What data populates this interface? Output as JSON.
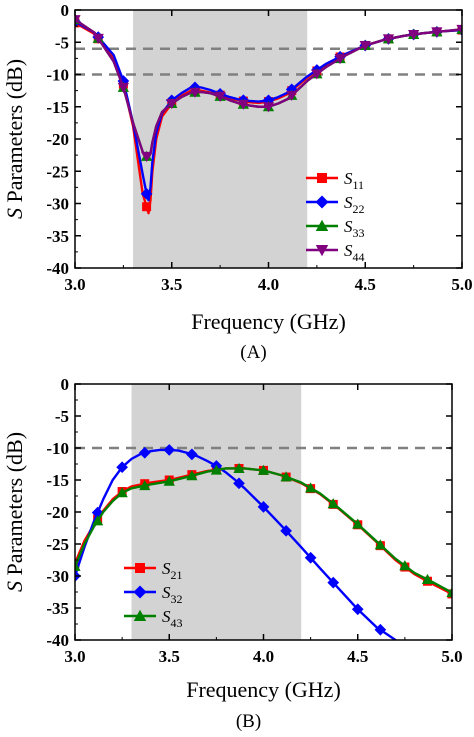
{
  "chart_data": [
    {
      "type": "line",
      "panel_label": "(A)",
      "xlabel": "Frequency (GHz)",
      "ylabel_italic": "S",
      "ylabel_rest": " Parameters (dB)",
      "xlim": [
        3.0,
        5.0
      ],
      "ylim": [
        -40,
        0
      ],
      "xticks": [
        "3.0",
        "3.5",
        "4.0",
        "4.5",
        "5.0"
      ],
      "yticks": [
        "0",
        "-5",
        "-10",
        "-15",
        "-20",
        "-25",
        "-30",
        "-35",
        "-40"
      ],
      "shaded_band": [
        3.3,
        4.2
      ],
      "reference_lines": [
        -6,
        -10
      ],
      "legend_position": "lower-right",
      "series": [
        {
          "name": "S",
          "sub": "11",
          "color": "#ff0000",
          "marker": "square",
          "x": [
            3.0,
            3.1,
            3.2,
            3.25,
            3.3,
            3.35,
            3.37,
            3.38,
            3.39,
            3.4,
            3.42,
            3.45,
            3.5,
            3.55,
            3.6,
            3.65,
            3.7,
            3.75,
            3.8,
            3.85,
            3.9,
            3.95,
            4.0,
            4.05,
            4.1,
            4.2,
            4.3,
            4.4,
            4.5,
            4.6,
            4.7,
            4.8,
            4.9,
            5.0
          ],
          "y": [
            -2.0,
            -3.7,
            -7.5,
            -11.5,
            -18.0,
            -28.5,
            -30.5,
            -31.5,
            -29.5,
            -25.0,
            -20.0,
            -16.5,
            -14.5,
            -13.3,
            -12.5,
            -12.5,
            -12.8,
            -13.2,
            -13.7,
            -14.0,
            -14.3,
            -14.4,
            -14.2,
            -13.7,
            -13.0,
            -10.5,
            -8.4,
            -6.8,
            -5.5,
            -4.6,
            -4.0,
            -3.6,
            -3.3,
            -3.1
          ],
          "marker_x": [
            3.0,
            3.12,
            3.25,
            3.37,
            3.5,
            3.62,
            3.75,
            3.87,
            4.0,
            4.12,
            4.25,
            4.37,
            4.5,
            4.62,
            4.75,
            4.87,
            5.0
          ]
        },
        {
          "name": "S",
          "sub": "22",
          "color": "#0000ff",
          "marker": "diamond",
          "x": [
            3.0,
            3.1,
            3.2,
            3.25,
            3.3,
            3.35,
            3.37,
            3.38,
            3.39,
            3.4,
            3.42,
            3.45,
            3.5,
            3.55,
            3.6,
            3.65,
            3.7,
            3.75,
            3.8,
            3.85,
            3.9,
            3.95,
            4.0,
            4.05,
            4.1,
            4.2,
            4.3,
            4.4,
            4.5,
            4.6,
            4.7,
            4.8,
            4.9,
            5.0
          ],
          "y": [
            -1.8,
            -3.5,
            -7.0,
            -11.0,
            -17.5,
            -25.5,
            -28.5,
            -29.5,
            -27.5,
            -23.5,
            -19.0,
            -16.0,
            -14.0,
            -12.9,
            -12.0,
            -12.0,
            -12.4,
            -13.0,
            -13.5,
            -13.9,
            -14.1,
            -14.2,
            -14.0,
            -13.5,
            -12.8,
            -10.3,
            -8.3,
            -6.8,
            -5.5,
            -4.6,
            -4.0,
            -3.6,
            -3.3,
            -3.1
          ],
          "marker_x": [
            3.0,
            3.12,
            3.25,
            3.37,
            3.5,
            3.62,
            3.75,
            3.87,
            4.0,
            4.12,
            4.25,
            4.37,
            4.5,
            4.62,
            4.75,
            4.87,
            5.0
          ]
        },
        {
          "name": "S",
          "sub": "33",
          "color": "#008000",
          "marker": "triangle-up",
          "x": [
            3.0,
            3.1,
            3.2,
            3.25,
            3.3,
            3.35,
            3.37,
            3.38,
            3.39,
            3.4,
            3.42,
            3.45,
            3.5,
            3.55,
            3.6,
            3.65,
            3.7,
            3.75,
            3.8,
            3.85,
            3.9,
            3.95,
            4.0,
            4.05,
            4.1,
            4.2,
            4.3,
            4.4,
            4.5,
            4.6,
            4.7,
            4.8,
            4.9,
            5.0
          ],
          "y": [
            -1.5,
            -3.5,
            -8.0,
            -12.0,
            -17.5,
            -22.0,
            -22.7,
            -22.8,
            -22.3,
            -20.5,
            -18.0,
            -15.8,
            -14.5,
            -13.5,
            -12.8,
            -12.7,
            -12.9,
            -13.4,
            -14.0,
            -14.5,
            -14.8,
            -15.0,
            -15.0,
            -14.5,
            -13.8,
            -11.0,
            -8.8,
            -7.0,
            -5.5,
            -4.6,
            -4.0,
            -3.6,
            -3.3,
            -3.0
          ],
          "marker_x": [
            3.0,
            3.12,
            3.25,
            3.37,
            3.5,
            3.62,
            3.75,
            3.87,
            4.0,
            4.12,
            4.25,
            4.37,
            4.5,
            4.62,
            4.75,
            4.87,
            5.0
          ]
        },
        {
          "name": "S",
          "sub": "44",
          "color": "#800080",
          "marker": "triangle-down",
          "x": [
            3.0,
            3.1,
            3.2,
            3.25,
            3.3,
            3.35,
            3.37,
            3.38,
            3.39,
            3.4,
            3.42,
            3.45,
            3.5,
            3.55,
            3.6,
            3.65,
            3.7,
            3.75,
            3.8,
            3.85,
            3.9,
            3.95,
            4.0,
            4.05,
            4.1,
            4.2,
            4.3,
            4.4,
            4.5,
            4.6,
            4.7,
            4.8,
            4.9,
            5.0
          ],
          "y": [
            -1.5,
            -3.5,
            -8.0,
            -12.0,
            -17.5,
            -22.0,
            -22.7,
            -22.8,
            -22.3,
            -20.5,
            -18.0,
            -15.8,
            -14.5,
            -13.5,
            -12.8,
            -12.7,
            -12.9,
            -13.4,
            -14.0,
            -14.5,
            -14.8,
            -15.0,
            -15.0,
            -14.5,
            -13.8,
            -11.0,
            -8.8,
            -7.0,
            -5.5,
            -4.6,
            -4.0,
            -3.6,
            -3.3,
            -3.0
          ],
          "marker_x": [
            3.0,
            3.12,
            3.25,
            3.37,
            3.5,
            3.62,
            3.75,
            3.87,
            4.0,
            4.12,
            4.25,
            4.37,
            4.5,
            4.62,
            4.75,
            4.87,
            5.0
          ]
        }
      ]
    },
    {
      "type": "line",
      "panel_label": "(B)",
      "xlabel": "Frequency (GHz)",
      "ylabel_italic": "S",
      "ylabel_rest": " Parameters (dB)",
      "xlim": [
        3.0,
        5.0
      ],
      "ylim": [
        -40,
        0
      ],
      "xticks": [
        "3.0",
        "3.5",
        "4.0",
        "4.5",
        "5.0"
      ],
      "yticks": [
        "0",
        "-5",
        "-10",
        "-15",
        "-20",
        "-25",
        "-30",
        "-35",
        "-40"
      ],
      "shaded_band": [
        3.3,
        4.2
      ],
      "reference_lines": [
        -10
      ],
      "legend_position": "lower-left",
      "series": [
        {
          "name": "S",
          "sub": "21",
          "color": "#ff0000",
          "marker": "square",
          "x": [
            3.0,
            3.05,
            3.1,
            3.15,
            3.2,
            3.25,
            3.3,
            3.4,
            3.5,
            3.6,
            3.7,
            3.8,
            3.9,
            4.0,
            4.1,
            4.2,
            4.3,
            4.4,
            4.5,
            4.6,
            4.7,
            4.8,
            4.9,
            5.0
          ],
          "y": [
            -28.0,
            -24.5,
            -22.0,
            -19.8,
            -18.0,
            -16.8,
            -16.0,
            -15.4,
            -15.0,
            -14.3,
            -13.6,
            -13.2,
            -13.2,
            -13.5,
            -14.3,
            -15.5,
            -17.2,
            -19.5,
            -22.0,
            -24.7,
            -27.5,
            -29.7,
            -31.3,
            -32.8
          ],
          "marker_x": [
            3.0,
            3.12,
            3.25,
            3.37,
            3.5,
            3.62,
            3.75,
            3.87,
            4.0,
            4.12,
            4.25,
            4.37,
            4.5,
            4.62,
            4.75,
            4.87,
            5.0
          ]
        },
        {
          "name": "S",
          "sub": "32",
          "color": "#0000ff",
          "marker": "diamond",
          "x": [
            3.0,
            3.05,
            3.1,
            3.15,
            3.2,
            3.25,
            3.3,
            3.35,
            3.4,
            3.45,
            3.5,
            3.55,
            3.6,
            3.65,
            3.7,
            3.75,
            3.8,
            3.85,
            3.9,
            4.0,
            4.1,
            4.2,
            4.3,
            4.4,
            4.5,
            4.6,
            4.7,
            4.75
          ],
          "y": [
            -30.0,
            -25.5,
            -21.5,
            -18.0,
            -15.0,
            -13.0,
            -11.7,
            -10.9,
            -10.5,
            -10.3,
            -10.3,
            -10.4,
            -10.8,
            -11.3,
            -12.0,
            -12.8,
            -13.8,
            -15.0,
            -16.3,
            -19.2,
            -22.3,
            -25.5,
            -28.8,
            -32.0,
            -35.2,
            -38.0,
            -40.0,
            -41.0
          ],
          "marker_x": [
            3.0,
            3.12,
            3.25,
            3.37,
            3.5,
            3.62,
            3.75,
            3.87,
            4.0,
            4.12,
            4.25,
            4.37,
            4.5,
            4.62
          ]
        },
        {
          "name": "S",
          "sub": "43",
          "color": "#008000",
          "marker": "triangle-up",
          "x": [
            3.0,
            3.05,
            3.1,
            3.15,
            3.2,
            3.25,
            3.3,
            3.4,
            3.5,
            3.6,
            3.7,
            3.8,
            3.9,
            4.0,
            4.1,
            4.2,
            4.3,
            4.4,
            4.5,
            4.6,
            4.7,
            4.8,
            4.9,
            5.0
          ],
          "y": [
            -28.5,
            -25.0,
            -22.3,
            -20.0,
            -18.3,
            -17.0,
            -16.3,
            -15.7,
            -15.2,
            -14.5,
            -13.7,
            -13.2,
            -13.2,
            -13.5,
            -14.3,
            -15.4,
            -17.1,
            -19.4,
            -21.9,
            -24.6,
            -27.3,
            -29.5,
            -31.0,
            -32.6
          ],
          "marker_x": [
            3.0,
            3.12,
            3.25,
            3.37,
            3.5,
            3.62,
            3.75,
            3.87,
            4.0,
            4.12,
            4.25,
            4.37,
            4.5,
            4.62,
            4.75,
            4.87,
            5.0
          ]
        }
      ]
    }
  ]
}
